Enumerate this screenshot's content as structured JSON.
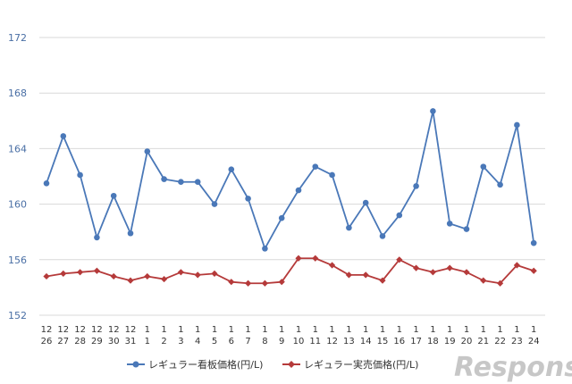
{
  "chart_data": {
    "type": "line",
    "title": "",
    "xlabel": "",
    "ylabel": "",
    "ylim": [
      152,
      172
    ],
    "yticks": [
      152,
      156,
      160,
      164,
      168,
      172
    ],
    "grid": true,
    "legend_position": "bottom",
    "x_months": [
      "12",
      "12",
      "12",
      "12",
      "12",
      "12",
      "1",
      "1",
      "1",
      "1",
      "1",
      "1",
      "1",
      "1",
      "1",
      "1",
      "1",
      "1",
      "1",
      "1",
      "1",
      "1",
      "1",
      "1",
      "1",
      "1",
      "1",
      "1",
      "1",
      "1"
    ],
    "x_days": [
      "26",
      "27",
      "28",
      "29",
      "30",
      "31",
      "1",
      "2",
      "3",
      "4",
      "5",
      "6",
      "7",
      "8",
      "9",
      "10",
      "11",
      "12",
      "13",
      "14",
      "15",
      "16",
      "17",
      "18",
      "19",
      "20",
      "21",
      "22",
      "23",
      "24"
    ],
    "series": [
      {
        "name": "レギュラー看板価格(円/L)",
        "color": "#4a78b8",
        "marker": "circle",
        "values": [
          161.5,
          164.9,
          162.1,
          157.6,
          160.6,
          157.9,
          163.8,
          161.8,
          161.6,
          161.6,
          160.0,
          162.5,
          160.4,
          156.8,
          159.0,
          161.0,
          162.7,
          162.1,
          158.3,
          160.1,
          157.7,
          159.2,
          161.3,
          166.7,
          158.6,
          158.2,
          162.7,
          161.4,
          165.7,
          157.2
        ]
      },
      {
        "name": "レギュラー実売価格(円/L)",
        "color": "#b53a3a",
        "marker": "diamond",
        "values": [
          154.8,
          155.0,
          155.1,
          155.2,
          154.8,
          154.5,
          154.8,
          154.6,
          155.1,
          154.9,
          155.0,
          154.4,
          154.3,
          154.3,
          154.4,
          156.1,
          156.1,
          155.6,
          154.9,
          154.9,
          154.5,
          156.0,
          155.4,
          155.1,
          155.4,
          155.1,
          154.5,
          154.3,
          155.6,
          155.2
        ]
      }
    ]
  },
  "watermark": "Response."
}
